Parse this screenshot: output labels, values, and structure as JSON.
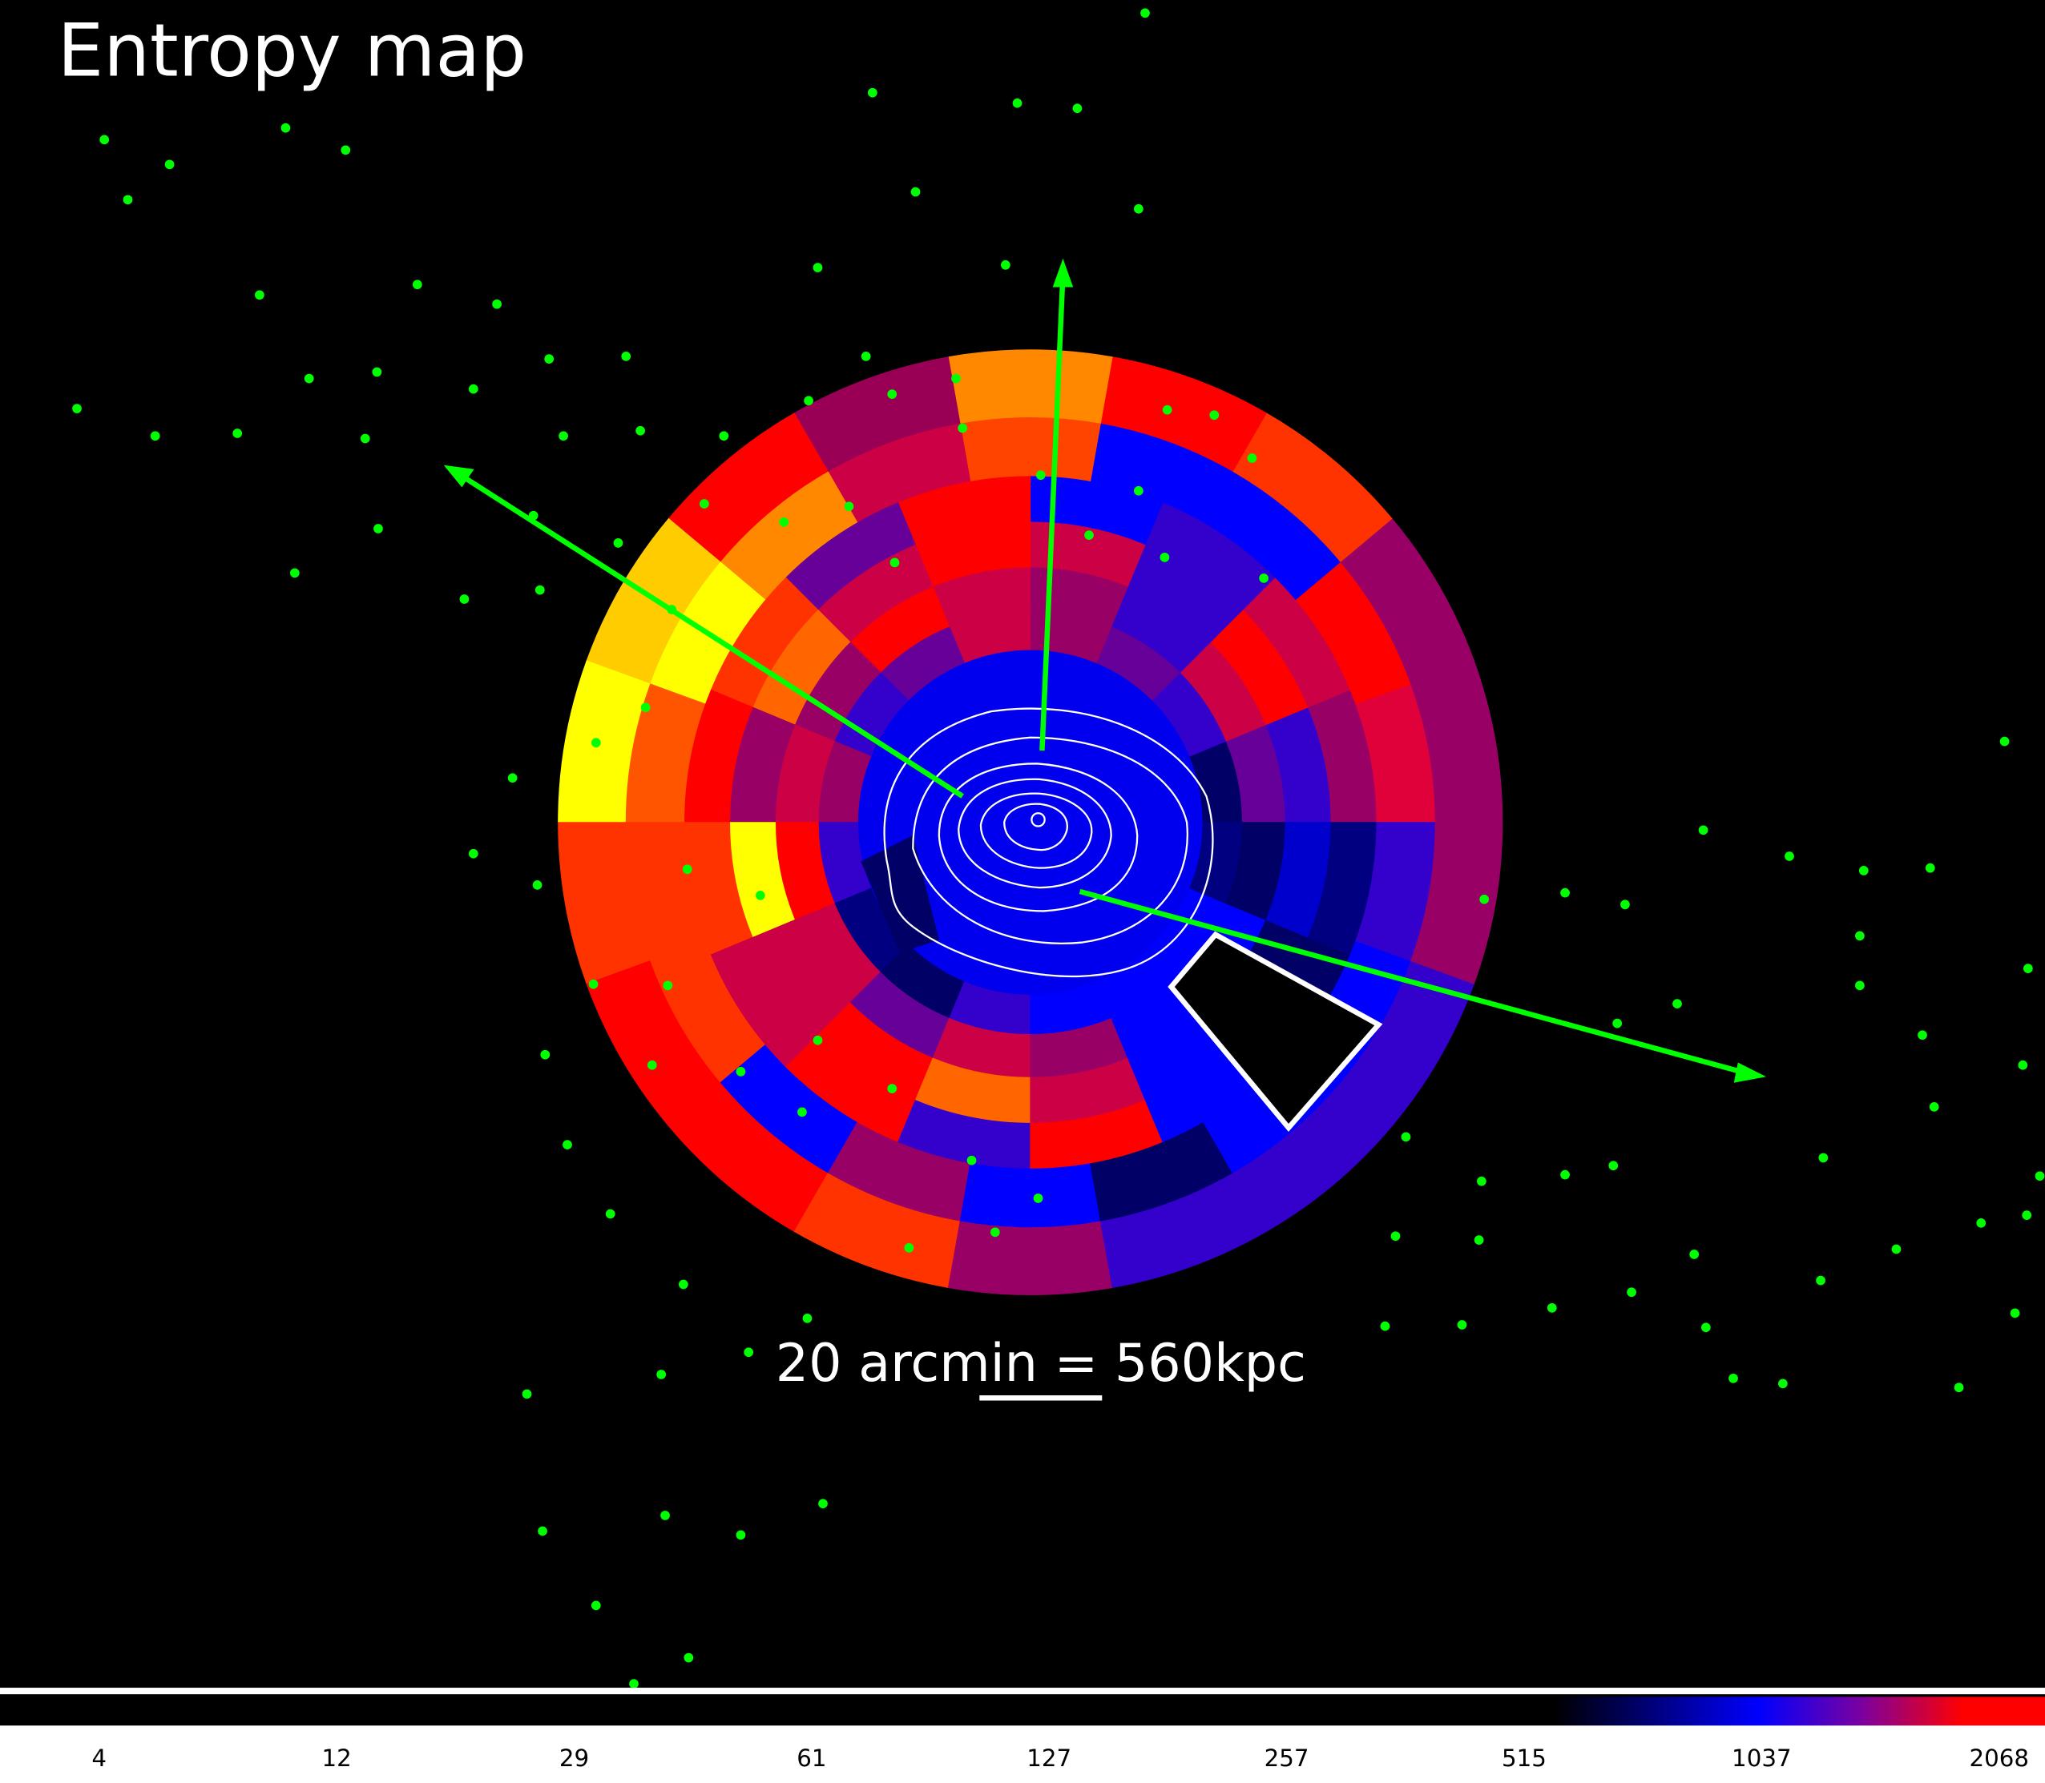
{
  "title": "Entropy map",
  "scale_label": "20 arcmin = 560kpc",
  "colorbar": {
    "ticks": [
      4,
      12,
      29,
      61,
      127,
      257,
      515,
      1037,
      2068
    ]
  }
}
